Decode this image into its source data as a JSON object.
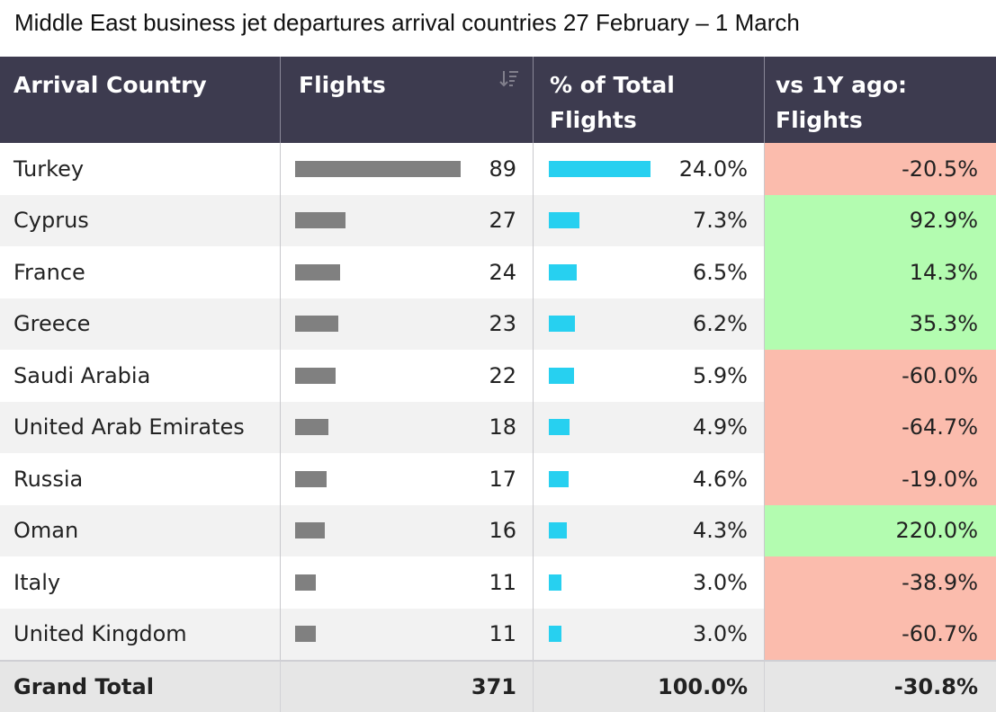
{
  "title": "Middle East business jet departures arrival countries 27 February – 1 March",
  "headers": {
    "country": "Arrival Country",
    "flights": "Flights",
    "pct_line1": "% of Total",
    "pct_line2": "Flights",
    "yoy_line1": "vs 1Y ago:",
    "yoy_line2": "Flights"
  },
  "colors": {
    "header_bg": "#3d3b4f",
    "flights_bar": "#808080",
    "pct_bar": "#27d0f0",
    "negative": "#fbbcad",
    "positive": "#b3fcb0"
  },
  "chart_data": {
    "type": "table",
    "title": "Middle East business jet departures arrival countries 27 February – 1 March",
    "columns": [
      "Arrival Country",
      "Flights",
      "% of Total Flights",
      "vs 1Y ago: Flights"
    ],
    "rows": [
      {
        "country": "Turkey",
        "flights": 89,
        "flights_label": "89",
        "pct": 24.0,
        "pct_label": "24.0%",
        "yoy": -20.5,
        "yoy_label": "-20.5%"
      },
      {
        "country": "Cyprus",
        "flights": 27,
        "flights_label": "27",
        "pct": 7.3,
        "pct_label": "7.3%",
        "yoy": 92.9,
        "yoy_label": "92.9%"
      },
      {
        "country": "France",
        "flights": 24,
        "flights_label": "24",
        "pct": 6.5,
        "pct_label": "6.5%",
        "yoy": 14.3,
        "yoy_label": "14.3%"
      },
      {
        "country": "Greece",
        "flights": 23,
        "flights_label": "23",
        "pct": 6.2,
        "pct_label": "6.2%",
        "yoy": 35.3,
        "yoy_label": "35.3%"
      },
      {
        "country": "Saudi Arabia",
        "flights": 22,
        "flights_label": "22",
        "pct": 5.9,
        "pct_label": "5.9%",
        "yoy": -60.0,
        "yoy_label": "-60.0%"
      },
      {
        "country": "United Arab Emirates",
        "flights": 18,
        "flights_label": "18",
        "pct": 4.9,
        "pct_label": "4.9%",
        "yoy": -64.7,
        "yoy_label": "-64.7%"
      },
      {
        "country": "Russia",
        "flights": 17,
        "flights_label": "17",
        "pct": 4.6,
        "pct_label": "4.6%",
        "yoy": -19.0,
        "yoy_label": "-19.0%"
      },
      {
        "country": "Oman",
        "flights": 16,
        "flights_label": "16",
        "pct": 4.3,
        "pct_label": "4.3%",
        "yoy": 220.0,
        "yoy_label": "220.0%"
      },
      {
        "country": "Italy",
        "flights": 11,
        "flights_label": "11",
        "pct": 3.0,
        "pct_label": "3.0%",
        "yoy": -38.9,
        "yoy_label": "-38.9%"
      },
      {
        "country": "United Kingdom",
        "flights": 11,
        "flights_label": "11",
        "pct": 3.0,
        "pct_label": "3.0%",
        "yoy": -60.7,
        "yoy_label": "-60.7%"
      }
    ],
    "total": {
      "label": "Grand Total",
      "flights": "371",
      "pct": "100.0%",
      "yoy": "-30.8%"
    }
  }
}
